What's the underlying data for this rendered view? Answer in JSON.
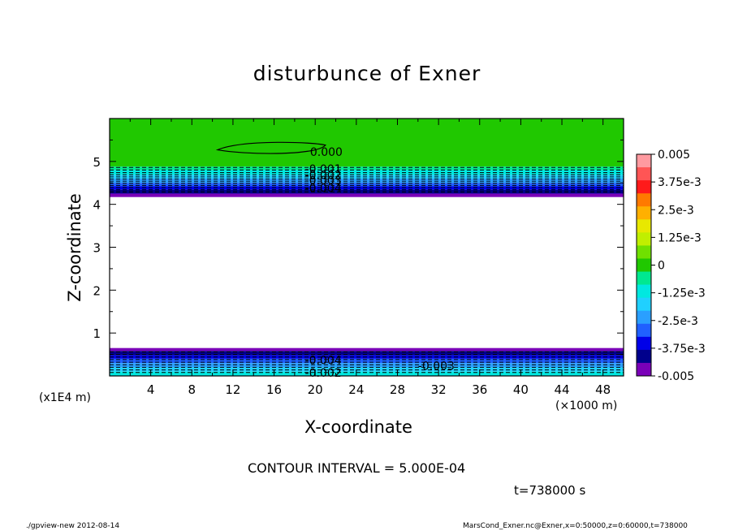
{
  "chart_data": {
    "type": "contour",
    "title": "disturbunce of Exner",
    "xlabel": "X-coordinate",
    "ylabel": "Z-coordinate",
    "x_scale_label": "(×1000 m)",
    "y_scale_label": "(x1E4 m)",
    "xlim": [
      0,
      50
    ],
    "ylim": [
      0,
      6
    ],
    "x_ticks": [
      4,
      8,
      12,
      16,
      20,
      24,
      28,
      32,
      36,
      40,
      44,
      48
    ],
    "y_ticks": [
      1,
      2,
      3,
      4,
      5
    ],
    "contour_interval_text": "CONTOUR INTERVAL = 5.000E-04",
    "time_text": "t=738000 s",
    "colorbar": {
      "tick_labels": [
        "0.005",
        "3.75e-3",
        "2.5e-3",
        "1.25e-3",
        "0",
        "-1.25e-3",
        "-2.5e-3",
        "-3.75e-3",
        "-0.005"
      ],
      "colors_top_to_bottom": [
        "#ff9aa0",
        "#ff5555",
        "#ff1a1a",
        "#ff7a00",
        "#ffb000",
        "#e8e800",
        "#c0ef00",
        "#70e000",
        "#20c800",
        "#00e890",
        "#00e8e0",
        "#20d0ff",
        "#2a9fff",
        "#2060ff",
        "#0000e8",
        "#00008c",
        "#7a00b8"
      ]
    },
    "contour_labels": [
      {
        "text": "0.000",
        "x": 19.5,
        "z": 5.22
      },
      {
        "text": "-0.001",
        "x": 19.0,
        "z": 4.83
      },
      {
        "text": "-0.002",
        "x": 19.0,
        "z": 4.68
      },
      {
        "text": "-0.003",
        "x": 19.0,
        "z": 4.56
      },
      {
        "text": "-0.004",
        "x": 19.0,
        "z": 4.38
      },
      {
        "text": "-0.004",
        "x": 19.0,
        "z": 0.37
      },
      {
        "text": "-0.003",
        "x": 30.0,
        "z": 0.24
      },
      {
        "text": "-0.002",
        "x": 19.0,
        "z": 0.08
      }
    ]
  },
  "footer": {
    "left": "./gpview-new   2012-08-14",
    "right": "MarsCond_Exner.nc@Exner,x=0:50000,z=0:60000,t=738000"
  }
}
